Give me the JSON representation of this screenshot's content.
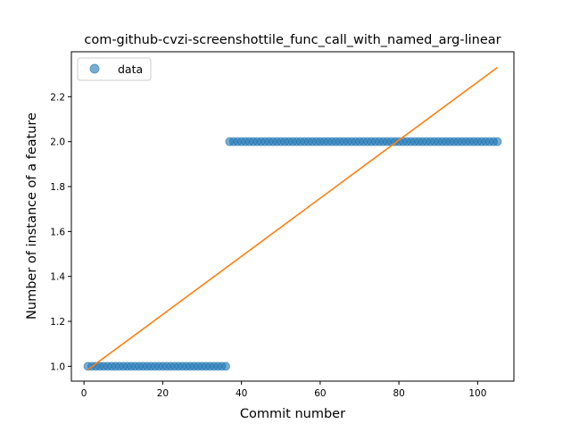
{
  "chart_data": {
    "type": "scatter",
    "title": "com-github-cvzi-screenshottile_func_call_with_named_arg-linear",
    "xlabel": "Commit number",
    "ylabel": "Number of instance of a feature",
    "xlim": [
      -3.2,
      109.2
    ],
    "ylim": [
      0.934,
      2.4
    ],
    "xticks": [
      0,
      20,
      40,
      60,
      80,
      100
    ],
    "yticks": [
      1.0,
      1.2,
      1.4,
      1.6,
      1.8,
      2.0,
      2.2
    ],
    "ytick_labels": [
      "1.0",
      "1.2",
      "1.4",
      "1.6",
      "1.8",
      "2.0",
      "2.2"
    ],
    "grid": false,
    "legend": {
      "position": "top-left",
      "entries": [
        "data"
      ]
    },
    "series": [
      {
        "name": "data",
        "kind": "points",
        "color": "#1f77b4",
        "segments": [
          {
            "x_from": 1,
            "x_to": 36,
            "y": 1
          },
          {
            "x_from": 37,
            "x_to": 105,
            "y": 2
          }
        ]
      },
      {
        "kind": "line",
        "color": "#ff7f0e",
        "x": [
          1,
          105
        ],
        "y": [
          0.985,
          2.33
        ]
      }
    ]
  }
}
